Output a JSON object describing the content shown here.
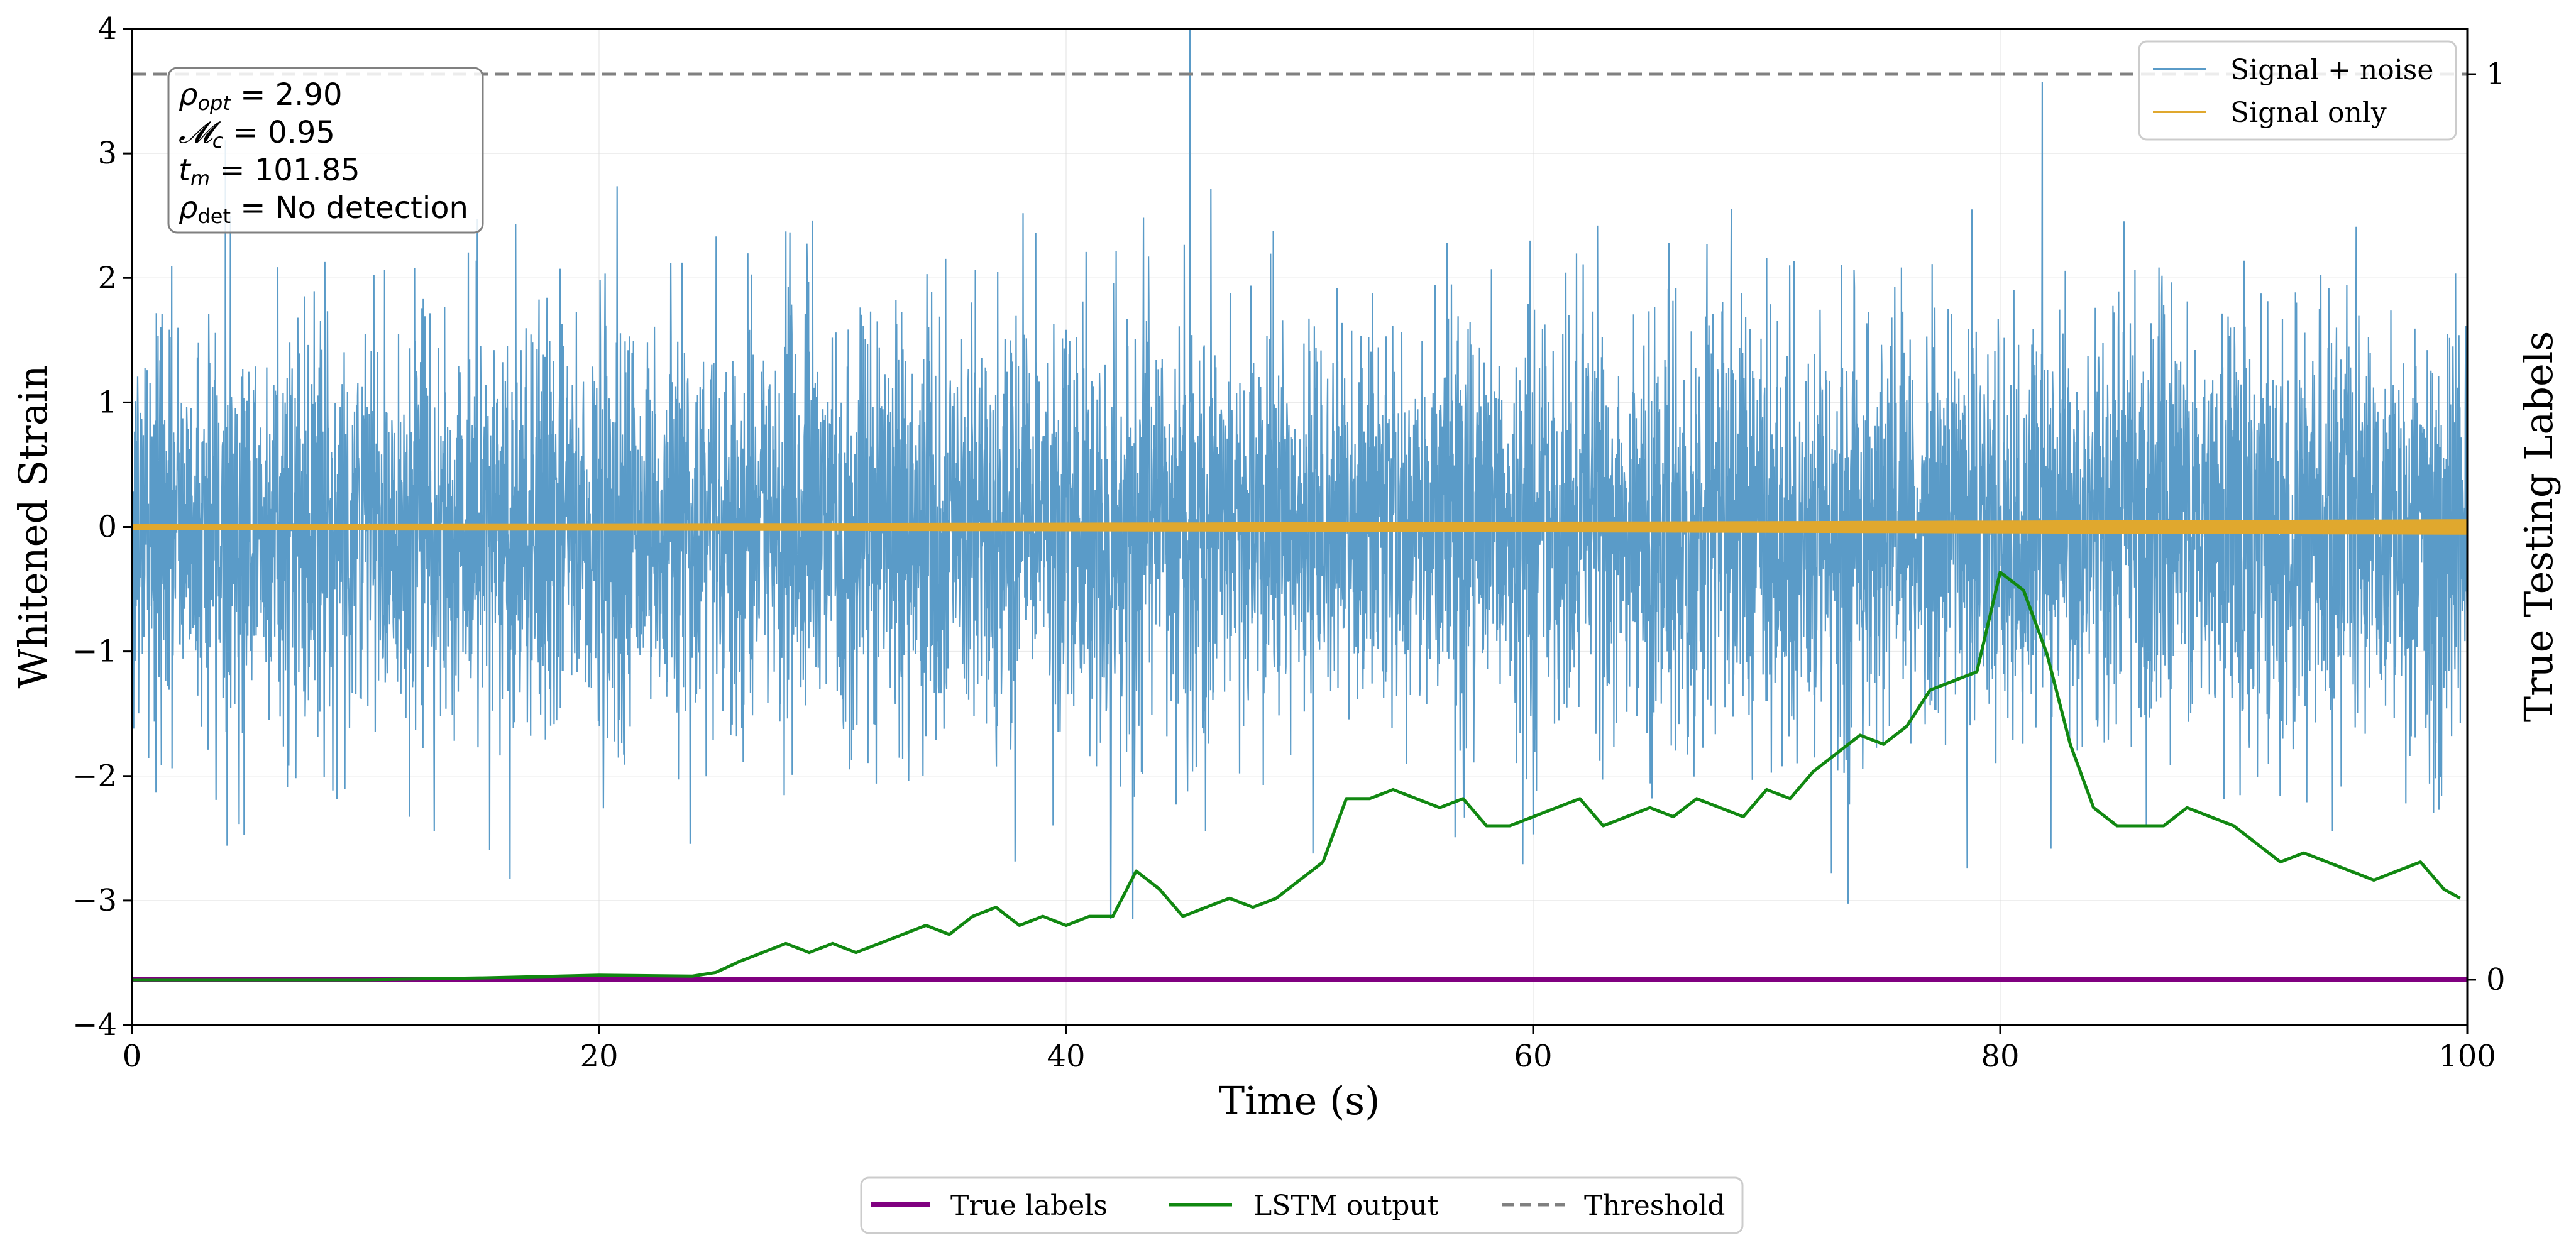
{
  "chart_data": {
    "type": "line",
    "xlabel": "Time (s)",
    "ylabel": "Whitened Strain",
    "y2label": "True Testing Labels",
    "xlim": [
      0,
      100
    ],
    "ylim": [
      -4,
      4
    ],
    "y2lim": [
      -0.05,
      1.05
    ],
    "xticks": [
      "0",
      "20",
      "40",
      "60",
      "80",
      "100"
    ],
    "yticks": [
      "−4",
      "−3",
      "−2",
      "−1",
      "0",
      "1",
      "2",
      "3",
      "4"
    ],
    "y2ticks": [
      "0",
      "1"
    ],
    "grid": true,
    "series": [
      {
        "name": "Signal + noise",
        "axis": "left",
        "color": "#5a9bc8",
        "description": "white noise with std about 0.95, spikes up to about 4"
      },
      {
        "name": "Signal only",
        "axis": "left",
        "color": "#e0a82e",
        "description": "low amplitude chirp near 0, growing to about ±0.05 by 100 s"
      },
      {
        "name": "True labels",
        "axis": "right",
        "color": "#800080",
        "x": [
          0,
          100
        ],
        "values": [
          0,
          0
        ]
      },
      {
        "name": "LSTM output",
        "axis": "right",
        "color": "#118811",
        "x": [
          0,
          10,
          15,
          20,
          24,
          25,
          26,
          27,
          28,
          29,
          30,
          31,
          32,
          33,
          34,
          35,
          36,
          37,
          38,
          39,
          40,
          41,
          42,
          43,
          44,
          45,
          46,
          47,
          48,
          49,
          50,
          51,
          52,
          53,
          54,
          55,
          56,
          57,
          58,
          59,
          60,
          61,
          62,
          63,
          64,
          65,
          66,
          67,
          68,
          69,
          70,
          71,
          72,
          73,
          74,
          75,
          76,
          77,
          78,
          79,
          80,
          81,
          82,
          83,
          84,
          85,
          86,
          87,
          88,
          89,
          90,
          91,
          92,
          93,
          94,
          95,
          96,
          97,
          98,
          99,
          99.7
        ],
        "values": [
          0,
          0,
          0.002,
          0.005,
          0.004,
          0.008,
          0.02,
          0.03,
          0.04,
          0.03,
          0.04,
          0.03,
          0.04,
          0.05,
          0.06,
          0.05,
          0.07,
          0.08,
          0.06,
          0.07,
          0.06,
          0.07,
          0.07,
          0.12,
          0.1,
          0.07,
          0.08,
          0.09,
          0.08,
          0.09,
          0.11,
          0.13,
          0.2,
          0.2,
          0.21,
          0.2,
          0.19,
          0.2,
          0.17,
          0.17,
          0.18,
          0.19,
          0.2,
          0.17,
          0.18,
          0.19,
          0.18,
          0.2,
          0.19,
          0.18,
          0.21,
          0.2,
          0.23,
          0.25,
          0.27,
          0.26,
          0.28,
          0.32,
          0.33,
          0.34,
          0.45,
          0.43,
          0.36,
          0.26,
          0.19,
          0.17,
          0.17,
          0.17,
          0.19,
          0.18,
          0.17,
          0.15,
          0.13,
          0.14,
          0.13,
          0.12,
          0.11,
          0.12,
          0.13,
          0.1,
          0.09
        ]
      },
      {
        "name": "Threshold",
        "axis": "right",
        "color": "#808080",
        "style": "dashed",
        "x": [
          0,
          100
        ],
        "values": [
          1,
          1
        ]
      }
    ],
    "annotation": {
      "line1": "ρ_opt = 2.90",
      "line2": "𝓜_c = 0.95",
      "line3": "t_m = 101.85",
      "line4": "ρ_det = No detection"
    },
    "legend_top": {
      "placement": "top-right",
      "entries": [
        "Signal + noise",
        "Signal only"
      ]
    },
    "legend_bottom": {
      "placement": "bottom-center",
      "entries": [
        "True labels",
        "LSTM output",
        "Threshold"
      ]
    }
  }
}
